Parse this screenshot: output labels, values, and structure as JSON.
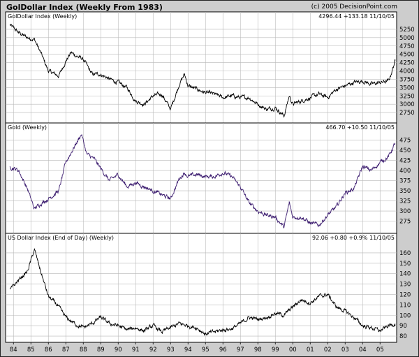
{
  "header": {
    "title": "GolDollar Index (Weekly From 1983)",
    "copyright": "(c) 2005 DecisionPoint.com"
  },
  "chart_data": [
    {
      "type": "line",
      "title": "GolDollar Index (Weekly)",
      "summary": "4296.44 +133.18 11/10/05",
      "ylim": [
        2500,
        5500
      ],
      "yticks": [
        2750,
        3000,
        3250,
        3500,
        3750,
        4000,
        4250,
        4500,
        4750,
        5000,
        5250
      ],
      "grid": true,
      "line_color": "#000000",
      "x": [
        1983.8,
        1984.3,
        1984.8,
        1985.2,
        1985.6,
        1986.0,
        1986.6,
        1987.0,
        1987.3,
        1987.6,
        1988.0,
        1988.5,
        1989.0,
        1989.5,
        1990.0,
        1990.5,
        1991.0,
        1991.5,
        1992.0,
        1992.5,
        1993.0,
        1993.5,
        1993.8,
        1994.0,
        1994.5,
        1995.0,
        1995.5,
        1996.0,
        1996.5,
        1997.0,
        1997.5,
        1998.0,
        1998.5,
        1999.0,
        1999.5,
        1999.8,
        2000.0,
        2000.5,
        2001.0,
        2001.5,
        2002.0,
        2002.5,
        2003.0,
        2003.5,
        2004.0,
        2004.5,
        2005.0,
        2005.5,
        2005.86
      ],
      "values": [
        5380,
        5150,
        5000,
        4950,
        4500,
        4000,
        3850,
        4300,
        4550,
        4450,
        4350,
        3900,
        3900,
        3750,
        3650,
        3500,
        3100,
        3000,
        3250,
        3300,
        2850,
        3600,
        3900,
        3550,
        3450,
        3350,
        3300,
        3200,
        3250,
        3200,
        3200,
        3000,
        2850,
        2900,
        2650,
        3250,
        3000,
        3100,
        3200,
        3300,
        3200,
        3450,
        3550,
        3650,
        3700,
        3600,
        3650,
        3700,
        4296
      ]
    },
    {
      "type": "line",
      "title": "Gold (Weekly)",
      "summary": "466.70 +10.50 11/10/05",
      "ylim": [
        250,
        495
      ],
      "yticks": [
        275,
        300,
        325,
        350,
        375,
        400,
        425,
        450,
        475
      ],
      "grid": true,
      "line_color": "#3a1a6e",
      "x": [
        1983.8,
        1984.3,
        1984.8,
        1985.2,
        1985.6,
        1986.0,
        1986.6,
        1987.0,
        1987.5,
        1987.9,
        1988.2,
        1988.6,
        1989.0,
        1989.5,
        1990.0,
        1990.5,
        1991.0,
        1991.5,
        1992.0,
        1992.5,
        1993.0,
        1993.5,
        1993.8,
        1994.0,
        1994.5,
        1995.0,
        1995.5,
        1996.0,
        1996.5,
        1997.0,
        1997.5,
        1998.0,
        1998.5,
        1999.0,
        1999.5,
        1999.8,
        2000.0,
        2000.5,
        2001.0,
        2001.5,
        2002.0,
        2002.5,
        2003.0,
        2003.5,
        2004.0,
        2004.5,
        2005.0,
        2005.5,
        2005.86
      ],
      "values": [
        410,
        400,
        355,
        305,
        320,
        330,
        350,
        420,
        460,
        490,
        440,
        430,
        405,
        375,
        390,
        360,
        370,
        360,
        350,
        340,
        330,
        380,
        395,
        385,
        390,
        385,
        385,
        395,
        385,
        360,
        320,
        300,
        290,
        285,
        260,
        320,
        285,
        285,
        270,
        265,
        290,
        310,
        345,
        355,
        410,
        400,
        420,
        435,
        467
      ]
    },
    {
      "type": "line",
      "title": "US Dollar Index (End of Day) (Weekly)",
      "summary": "92.06 +0.80 +0.9% 11/10/05",
      "ylim": [
        76,
        170
      ],
      "yticks": [
        80,
        90,
        100,
        110,
        120,
        130,
        140,
        150,
        160
      ],
      "grid": true,
      "line_color": "#000000",
      "x": [
        1983.8,
        1984.3,
        1984.8,
        1985.2,
        1985.6,
        1986.0,
        1986.5,
        1987.0,
        1987.5,
        1988.0,
        1988.5,
        1989.0,
        1989.5,
        1990.0,
        1990.5,
        1991.0,
        1991.5,
        1992.0,
        1992.5,
        1993.0,
        1993.5,
        1994.0,
        1994.5,
        1995.0,
        1995.5,
        1996.0,
        1996.5,
        1997.0,
        1997.5,
        1998.0,
        1998.5,
        1999.0,
        1999.5,
        2000.0,
        2000.5,
        2001.0,
        2001.5,
        2002.0,
        2002.5,
        2003.0,
        2003.5,
        2004.0,
        2004.5,
        2005.0,
        2005.5,
        2005.86
      ],
      "values": [
        124,
        134,
        142,
        163,
        140,
        118,
        110,
        98,
        92,
        88,
        92,
        98,
        92,
        90,
        86,
        88,
        85,
        90,
        84,
        88,
        92,
        90,
        88,
        82,
        84,
        86,
        87,
        92,
        98,
        96,
        98,
        102,
        100,
        108,
        115,
        112,
        118,
        120,
        108,
        104,
        98,
        90,
        88,
        85,
        90,
        92
      ]
    }
  ],
  "x_axis": {
    "labels": [
      "84",
      "85",
      "86",
      "87",
      "88",
      "89",
      "90",
      "91",
      "92",
      "93",
      "94",
      "95",
      "96",
      "97",
      "98",
      "99",
      "00",
      "01",
      "02",
      "03",
      "04",
      "05"
    ],
    "years": [
      1984,
      1985,
      1986,
      1987,
      1988,
      1989,
      1990,
      1991,
      1992,
      1993,
      1994,
      1995,
      1996,
      1997,
      1998,
      1999,
      2000,
      2001,
      2002,
      2003,
      2004,
      2005
    ],
    "range": [
      1983.55,
      2005.95
    ]
  },
  "colors": {
    "page_bg": "#cdcdcd",
    "plot_bg": "#ffffff",
    "grid": "#b8b8b8",
    "gold_line": "#3a1a6e"
  }
}
